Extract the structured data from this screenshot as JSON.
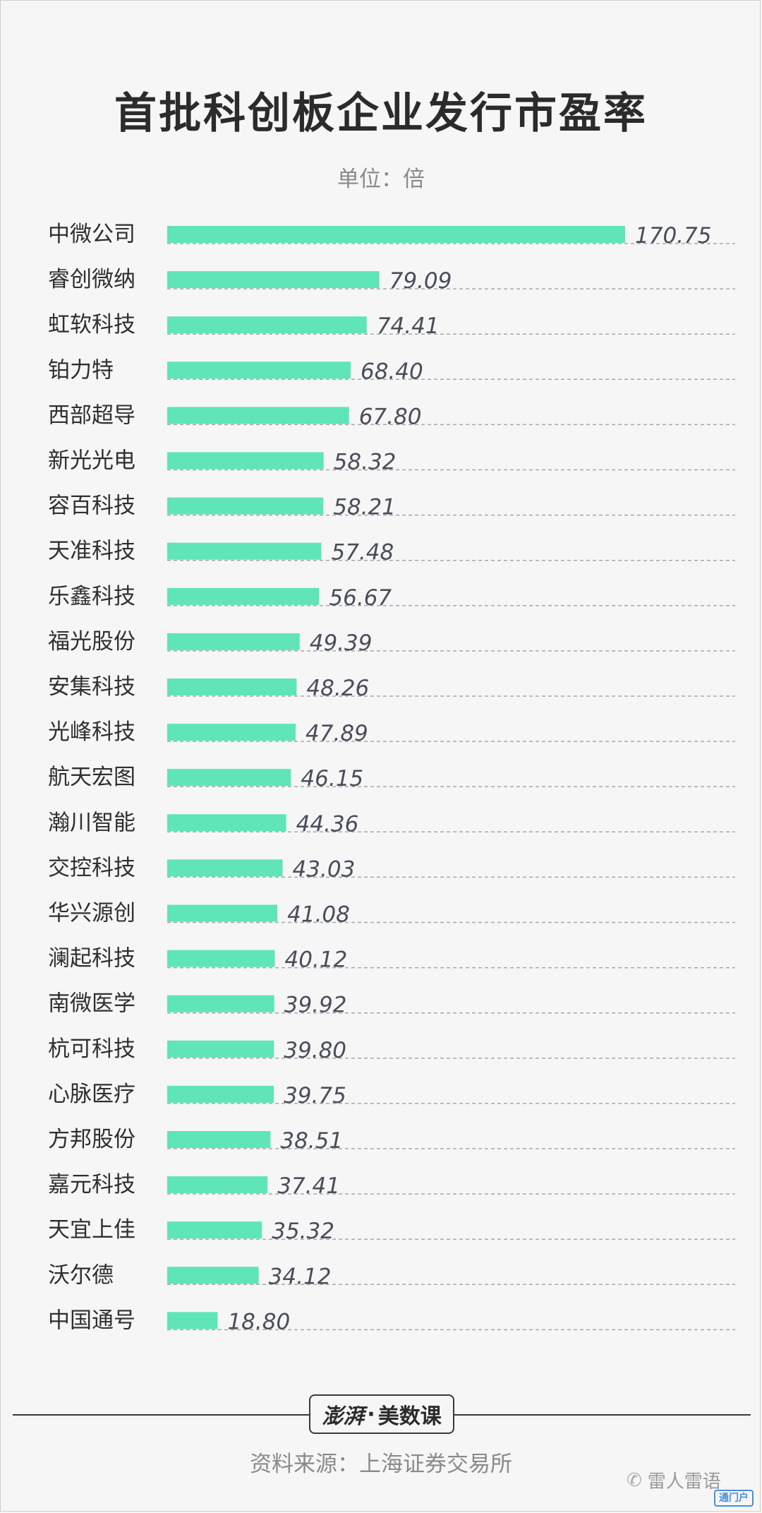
{
  "title": "首批科创板企业发行市盈率",
  "unit_label": "单位：倍",
  "chart_data": {
    "type": "bar",
    "orientation": "horizontal",
    "title": "首批科创板企业发行市盈率",
    "subtitle": "单位：倍",
    "categories": [
      "中微公司",
      "睿创微纳",
      "虹软科技",
      "铂力特",
      "西部超导",
      "新光光电",
      "容百科技",
      "天准科技",
      "乐鑫科技",
      "福光股份",
      "安集科技",
      "光峰科技",
      "航天宏图",
      "瀚川智能",
      "交控科技",
      "华兴源创",
      "澜起科技",
      "南微医学",
      "杭可科技",
      "心脉医疗",
      "方邦股份",
      "嘉元科技",
      "天宜上佳",
      "沃尔德",
      "中国通号"
    ],
    "values": [
      170.75,
      79.09,
      74.41,
      68.4,
      67.8,
      58.32,
      58.21,
      57.48,
      56.67,
      49.39,
      48.26,
      47.89,
      46.15,
      44.36,
      43.03,
      41.08,
      40.12,
      39.92,
      39.8,
      39.75,
      38.51,
      37.41,
      35.32,
      34.12,
      18.8
    ],
    "value_labels": [
      "170.75",
      "79.09",
      "74.41",
      "68.40",
      "67.80",
      "58.32",
      "58.21",
      "57.48",
      "56.67",
      "49.39",
      "48.26",
      "47.89",
      "46.15",
      "44.36",
      "43.03",
      "41.08",
      "40.12",
      "39.92",
      "39.80",
      "39.75",
      "38.51",
      "37.41",
      "35.32",
      "34.12",
      "18.80"
    ],
    "xlim": [
      0,
      170.75
    ],
    "bar_color": "#5fe5b8",
    "grid": false
  },
  "footer": {
    "brand_script": "澎湃",
    "brand_sep": "·",
    "brand_name": "美数课",
    "source": "资料来源：上海证券交易所"
  },
  "watermark": {
    "icon": "wechat-icon",
    "text": "雷人雷语",
    "logo_text": "通门户"
  }
}
